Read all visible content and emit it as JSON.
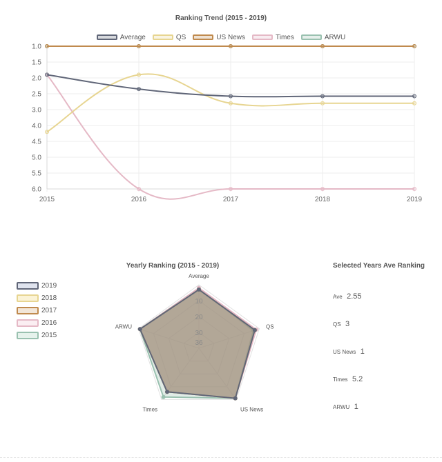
{
  "chart_data": [
    {
      "type": "line",
      "title": "Ranking Trend (2015 - 2019)",
      "x": [
        "2015",
        "2016",
        "2017",
        "2018",
        "2019"
      ],
      "ylim": [
        1.0,
        6.0
      ],
      "y_reversed": true,
      "y_ticks": [
        "1.0",
        "1.5",
        "2.0",
        "2.5",
        "3.0",
        "4.0",
        "4.5",
        "5.0",
        "5.5",
        "6.0"
      ],
      "legend": "top",
      "grid": true,
      "series": [
        {
          "name": "Average",
          "color": "#606678",
          "values": [
            2.0,
            2.5,
            2.75,
            2.75,
            2.75
          ]
        },
        {
          "name": "QS",
          "color": "#e7d591",
          "values": [
            4.0,
            2.0,
            3.0,
            3.0,
            3.0
          ]
        },
        {
          "name": "US News",
          "color": "#c08a4e",
          "values": [
            1.0,
            1.0,
            1.0,
            1.0,
            1.0
          ]
        },
        {
          "name": "Times",
          "color": "#e5b9c6",
          "values": [
            2.0,
            6.0,
            6.0,
            6.0,
            6.0
          ]
        },
        {
          "name": "ARWU",
          "color": "#9ac1b0",
          "values": [
            1.0,
            1.0,
            1.0,
            1.0,
            1.0
          ]
        }
      ]
    },
    {
      "type": "radar",
      "title": "Yearly Ranking (2015 - 2019)",
      "axes": [
        "Average",
        "QS",
        "US News",
        "Times",
        "ARWU"
      ],
      "r_ticks": [
        "10",
        "20",
        "30",
        "36"
      ],
      "r_min": 0,
      "r_max": 40,
      "legend": "left",
      "series": [
        {
          "name": "2019",
          "color": "#606678",
          "fill": "#dfe3ee",
          "values": [
            3,
            3,
            1,
            6,
            1
          ]
        },
        {
          "name": "2018",
          "color": "#e7d591",
          "fill": "#fbf3d6",
          "values": [
            3,
            3,
            1,
            6,
            1
          ]
        },
        {
          "name": "2017",
          "color": "#c08a4e",
          "fill": "#f2e6d8",
          "values": [
            3,
            3,
            1,
            6,
            1
          ]
        },
        {
          "name": "2016",
          "color": "#e5b9c6",
          "fill": "#fbeef2",
          "values": [
            2,
            2,
            1,
            6,
            1
          ]
        },
        {
          "name": "2015",
          "color": "#9ac1b0",
          "fill": "#e6f2ec",
          "values": [
            2,
            4,
            1,
            2,
            1
          ]
        }
      ]
    }
  ],
  "summary": {
    "title": "Selected Years Ave Ranking",
    "rows": [
      {
        "label": "Ave",
        "value": "2.55"
      },
      {
        "label": "QS",
        "value": "3"
      },
      {
        "label": "US News",
        "value": "1"
      },
      {
        "label": "Times",
        "value": "5.2"
      },
      {
        "label": "ARWU",
        "value": "1"
      }
    ]
  }
}
